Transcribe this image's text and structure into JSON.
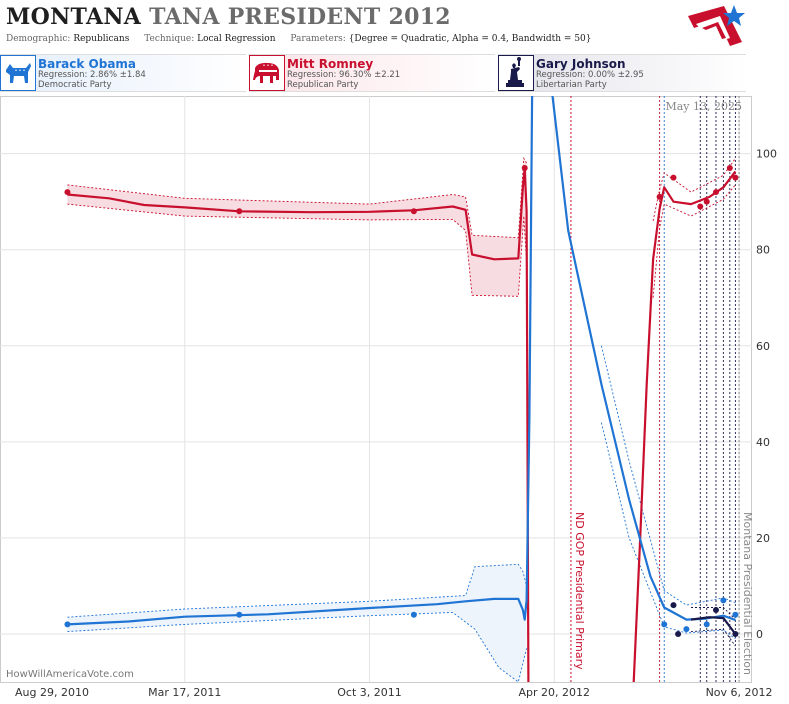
{
  "header": {
    "title_state": "MONTANA",
    "title_race": "TANA PRESIDENT",
    "title_year": "2012",
    "meta": [
      {
        "key": "Demographic:",
        "value": "Republicans"
      },
      {
        "key": "Technique:",
        "value": "Local Regression"
      },
      {
        "key": "Parameters:",
        "value": "{Degree = Quadratic, Alpha = 0.4, Bandwidth = 50}"
      }
    ]
  },
  "candidates": [
    {
      "name": "Barack Obama",
      "regression": "Regression: 2.86% ±1.84",
      "party": "Democratic Party",
      "color": "#1f74d4",
      "icon": "donkey-icon"
    },
    {
      "name": "Mitt Romney",
      "regression": "Regression: 96.30% ±2.21",
      "party": "Republican Party",
      "color": "#c8102e",
      "icon": "elephant-icon"
    },
    {
      "name": "Gary Johnson",
      "regression": "Regression: 0.00% ±2.95",
      "party": "Libertarian Party",
      "color": "#1a1a4a",
      "icon": "statue-of-liberty-icon"
    }
  ],
  "date_stamp": "May 13, 2025",
  "watermark": "HowWillAmericaVote.com",
  "chart_data": {
    "type": "line",
    "x_range": [
      "2010-08-29",
      "2012-11-20"
    ],
    "ylim": [
      -10,
      112
    ],
    "y_ticks": [
      0,
      20,
      40,
      60,
      80,
      100
    ],
    "x_ticks": [
      {
        "date": "2010-08-29",
        "label": "Aug 29, 2010"
      },
      {
        "date": "2011-03-17",
        "label": "Mar 17, 2011"
      },
      {
        "date": "2011-10-03",
        "label": "Oct 3, 2011"
      },
      {
        "date": "2012-04-20",
        "label": "Apr 20, 2012"
      },
      {
        "date": "2012-11-06",
        "label": "Nov 6, 2012"
      }
    ],
    "grid": true,
    "annotations": [
      {
        "date": "2012-05-08",
        "label": "ND GOP Presidential Primary",
        "color": "#c8102e"
      },
      {
        "date": "2012-11-06",
        "label": "Montana Presidential Election",
        "color": "#888888"
      }
    ],
    "poll_date_markers": [
      {
        "date": "2012-08-12",
        "color": "#c8102e"
      },
      {
        "date": "2012-08-17",
        "color": "#1f74d4"
      },
      {
        "date": "2012-09-25",
        "color": "#1a1a4a"
      },
      {
        "date": "2012-10-02",
        "color": "#1a1a4a"
      },
      {
        "date": "2012-10-12",
        "color": "#1a1a4a"
      },
      {
        "date": "2012-10-20",
        "color": "#1a1a4a"
      },
      {
        "date": "2012-10-27",
        "color": "#1a1a4a"
      },
      {
        "date": "2012-11-02",
        "color": "#1a1a4a"
      }
    ],
    "series": [
      {
        "name": "Mitt Romney",
        "color": "#c8102e",
        "band_fill": "#f7dde2",
        "trend": [
          {
            "d": "2010-11-10",
            "y": 91.5
          },
          {
            "d": "2010-12-25",
            "y": 90.7
          },
          {
            "d": "2011-02-01",
            "y": 89.3
          },
          {
            "d": "2011-03-17",
            "y": 88.8
          },
          {
            "d": "2011-05-15",
            "y": 88.0
          },
          {
            "d": "2011-08-01",
            "y": 87.8
          },
          {
            "d": "2011-10-03",
            "y": 87.9
          },
          {
            "d": "2011-11-20",
            "y": 88.2
          },
          {
            "d": "2012-01-01",
            "y": 89.0
          },
          {
            "d": "2012-01-15",
            "y": 88.3
          },
          {
            "d": "2012-01-22",
            "y": 79.0
          },
          {
            "d": "2012-02-15",
            "y": 78.0
          },
          {
            "d": "2012-03-12",
            "y": 78.2
          },
          {
            "d": "2012-03-17",
            "y": 93.0
          },
          {
            "d": "2012-03-19",
            "y": 97.0
          },
          {
            "d": "2012-03-21",
            "y": 88.0
          },
          {
            "d": "2012-03-23",
            "y": -10
          },
          {
            "gap": true
          },
          {
            "d": "2012-07-15",
            "y": -10
          },
          {
            "d": "2012-07-22",
            "y": 20.0
          },
          {
            "d": "2012-07-29",
            "y": 52.0
          },
          {
            "d": "2012-08-05",
            "y": 78.0
          },
          {
            "d": "2012-08-12",
            "y": 88.5
          },
          {
            "d": "2012-08-17",
            "y": 93.0
          },
          {
            "d": "2012-08-27",
            "y": 90.0
          },
          {
            "d": "2012-09-15",
            "y": 89.5
          },
          {
            "d": "2012-10-05",
            "y": 91.0
          },
          {
            "d": "2012-10-20",
            "y": 93.0
          },
          {
            "d": "2012-11-02",
            "y": 96.3
          }
        ],
        "band_upper": [
          {
            "d": "2010-11-10",
            "y": 93.5
          },
          {
            "d": "2011-03-17",
            "y": 90.7
          },
          {
            "d": "2011-10-03",
            "y": 89.5
          },
          {
            "d": "2012-01-01",
            "y": 91.5
          },
          {
            "d": "2012-01-15",
            "y": 91.0
          },
          {
            "d": "2012-01-22",
            "y": 83.0
          },
          {
            "d": "2012-03-12",
            "y": 82.5
          },
          {
            "d": "2012-03-18",
            "y": 99.0
          },
          {
            "d": "2012-03-21",
            "y": 98.0
          }
        ],
        "band_lower": [
          {
            "d": "2010-11-10",
            "y": 89.5
          },
          {
            "d": "2011-03-17",
            "y": 87.0
          },
          {
            "d": "2011-10-03",
            "y": 86.2
          },
          {
            "d": "2012-01-01",
            "y": 86.3
          },
          {
            "d": "2012-01-15",
            "y": 84.0
          },
          {
            "d": "2012-01-22",
            "y": 70.5
          },
          {
            "d": "2012-03-12",
            "y": 70.3
          },
          {
            "d": "2012-03-18",
            "y": 87.0
          },
          {
            "d": "2012-03-21",
            "y": 77.0
          }
        ],
        "late_upper": [
          {
            "d": "2012-08-05",
            "y": 86.0
          },
          {
            "d": "2012-08-12",
            "y": 92.5
          },
          {
            "d": "2012-08-17",
            "y": 96.0
          },
          {
            "d": "2012-09-15",
            "y": 92.0
          },
          {
            "d": "2012-10-20",
            "y": 95.5
          },
          {
            "d": "2012-11-02",
            "y": 99.0
          }
        ],
        "late_lower": [
          {
            "d": "2012-08-05",
            "y": 70.0
          },
          {
            "d": "2012-08-12",
            "y": 84.5
          },
          {
            "d": "2012-08-17",
            "y": 89.5
          },
          {
            "d": "2012-09-15",
            "y": 87.0
          },
          {
            "d": "2012-10-20",
            "y": 90.5
          },
          {
            "d": "2012-11-02",
            "y": 93.5
          }
        ],
        "points": [
          {
            "d": "2010-11-10",
            "y": 92
          },
          {
            "d": "2011-05-15",
            "y": 88
          },
          {
            "d": "2011-11-20",
            "y": 88
          },
          {
            "d": "2012-03-19",
            "y": 97
          },
          {
            "d": "2012-08-12",
            "y": 91
          },
          {
            "d": "2012-08-27",
            "y": 95
          },
          {
            "d": "2012-09-25",
            "y": 89
          },
          {
            "d": "2012-10-02",
            "y": 90
          },
          {
            "d": "2012-10-12",
            "y": 92
          },
          {
            "d": "2012-10-27",
            "y": 97
          },
          {
            "d": "2012-11-02",
            "y": 95
          }
        ]
      },
      {
        "name": "Barack Obama",
        "color": "#1f74d4",
        "band_fill": "#eef4fb",
        "trend": [
          {
            "d": "2010-11-10",
            "y": 2.0
          },
          {
            "d": "2011-01-15",
            "y": 2.6
          },
          {
            "d": "2011-03-17",
            "y": 3.6
          },
          {
            "d": "2011-06-15",
            "y": 4.1
          },
          {
            "d": "2011-10-03",
            "y": 5.4
          },
          {
            "d": "2011-12-15",
            "y": 6.2
          },
          {
            "d": "2012-01-15",
            "y": 6.8
          },
          {
            "d": "2012-02-15",
            "y": 7.3
          },
          {
            "d": "2012-03-12",
            "y": 7.3
          },
          {
            "d": "2012-03-17",
            "y": 5.0
          },
          {
            "d": "2012-03-19",
            "y": 3.0
          },
          {
            "d": "2012-03-21",
            "y": 7.0
          },
          {
            "d": "2012-03-24",
            "y": 45.0
          },
          {
            "d": "2012-03-27",
            "y": 112
          },
          {
            "gap": true
          },
          {
            "d": "2012-04-18",
            "y": 112
          },
          {
            "d": "2012-05-05",
            "y": 84.0
          },
          {
            "d": "2012-06-10",
            "y": 52.0
          },
          {
            "d": "2012-07-10",
            "y": 28.0
          },
          {
            "d": "2012-08-02",
            "y": 12.0
          },
          {
            "d": "2012-08-17",
            "y": 5.5
          },
          {
            "d": "2012-09-10",
            "y": 3.0
          },
          {
            "d": "2012-10-01",
            "y": 3.2
          },
          {
            "d": "2012-10-20",
            "y": 3.8
          },
          {
            "d": "2012-11-02",
            "y": 2.9
          }
        ],
        "band_upper": [
          {
            "d": "2010-11-10",
            "y": 3.5
          },
          {
            "d": "2011-03-17",
            "y": 5.2
          },
          {
            "d": "2011-10-03",
            "y": 6.8
          },
          {
            "d": "2012-01-15",
            "y": 8.0
          },
          {
            "d": "2012-01-25",
            "y": 14.0
          },
          {
            "d": "2012-03-12",
            "y": 14.5
          },
          {
            "d": "2012-03-17",
            "y": 13.0
          },
          {
            "d": "2012-03-21",
            "y": 10.0
          }
        ],
        "band_lower": [
          {
            "d": "2010-11-10",
            "y": 0.5
          },
          {
            "d": "2011-03-17",
            "y": 2.0
          },
          {
            "d": "2011-10-03",
            "y": 3.8
          },
          {
            "d": "2012-01-01",
            "y": 4.5
          },
          {
            "d": "2012-01-25",
            "y": 1.0
          },
          {
            "d": "2012-02-20",
            "y": -7.0
          },
          {
            "d": "2012-03-12",
            "y": -10
          },
          {
            "d": "2012-03-21",
            "y": -3.0
          }
        ],
        "late_upper": [
          {
            "d": "2012-06-10",
            "y": 60.0
          },
          {
            "d": "2012-07-10",
            "y": 36.0
          },
          {
            "d": "2012-08-17",
            "y": 9.0
          },
          {
            "d": "2012-09-10",
            "y": 6.0
          },
          {
            "d": "2012-10-20",
            "y": 7.5
          },
          {
            "d": "2012-11-02",
            "y": 6.5
          }
        ],
        "late_lower": [
          {
            "d": "2012-06-10",
            "y": 44.0
          },
          {
            "d": "2012-07-10",
            "y": 20.0
          },
          {
            "d": "2012-08-17",
            "y": 1.5
          },
          {
            "d": "2012-09-10",
            "y": 0.2
          },
          {
            "d": "2012-10-20",
            "y": 0.8
          },
          {
            "d": "2012-11-02",
            "y": -1.0
          }
        ],
        "points": [
          {
            "d": "2010-11-10",
            "y": 2
          },
          {
            "d": "2011-05-15",
            "y": 4
          },
          {
            "d": "2011-11-20",
            "y": 4
          },
          {
            "d": "2012-08-17",
            "y": 2
          },
          {
            "d": "2012-09-10",
            "y": 1
          },
          {
            "d": "2012-10-02",
            "y": 2
          },
          {
            "d": "2012-10-20",
            "y": 7
          },
          {
            "d": "2012-11-02",
            "y": 4
          }
        ]
      },
      {
        "name": "Gary Johnson",
        "color": "#1a1a4a",
        "band_fill": "none",
        "trend": [
          {
            "d": "2012-09-15",
            "y": 3.0
          },
          {
            "d": "2012-10-05",
            "y": 3.5
          },
          {
            "d": "2012-10-20",
            "y": 3.3
          },
          {
            "d": "2012-11-02",
            "y": 0.0
          }
        ],
        "band_upper": [],
        "band_lower": [],
        "late_upper": [
          {
            "d": "2012-09-15",
            "y": 5.5
          },
          {
            "d": "2012-10-20",
            "y": 5.5
          },
          {
            "d": "2012-11-02",
            "y": 3.0
          }
        ],
        "late_lower": [
          {
            "d": "2012-09-15",
            "y": 0.5
          },
          {
            "d": "2012-10-20",
            "y": 1.0
          },
          {
            "d": "2012-11-02",
            "y": -2.5
          }
        ],
        "points": [
          {
            "d": "2012-08-27",
            "y": 6
          },
          {
            "d": "2012-09-01",
            "y": 0
          },
          {
            "d": "2012-10-12",
            "y": 5
          },
          {
            "d": "2012-11-02",
            "y": 0
          }
        ]
      }
    ]
  }
}
